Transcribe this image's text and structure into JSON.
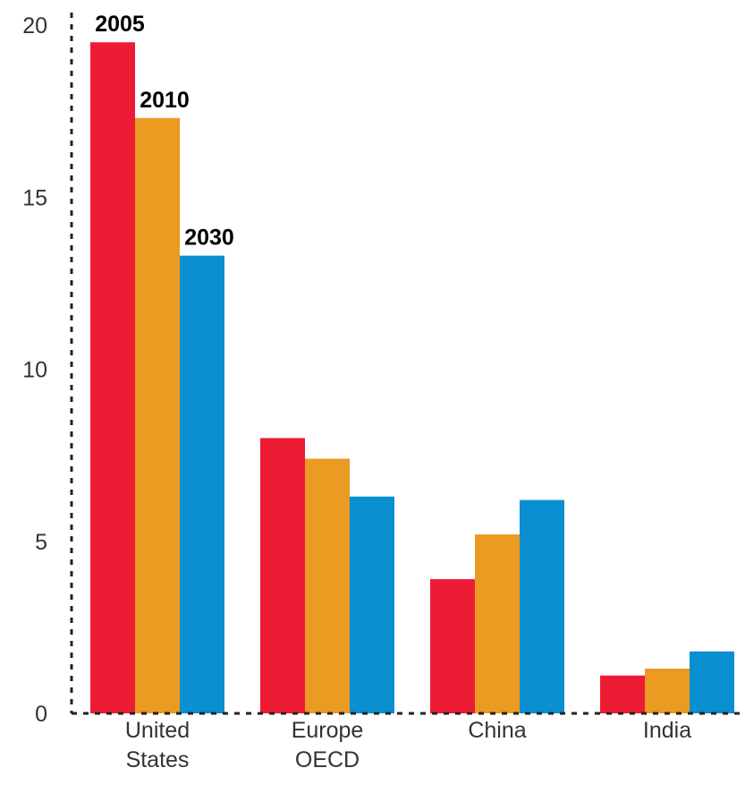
{
  "chart_data": {
    "type": "bar",
    "title": "",
    "xlabel": "",
    "ylabel": "",
    "categories": [
      "United\nStates",
      "Europe\nOECD",
      "China",
      "India"
    ],
    "series": [
      {
        "name": "2005",
        "color": "#ED1C35",
        "values": [
          19.5,
          8.0,
          3.9,
          1.1
        ]
      },
      {
        "name": "2010",
        "color": "#EB9A22",
        "values": [
          17.3,
          7.4,
          5.2,
          1.3
        ]
      },
      {
        "name": "2030",
        "color": "#0A8FD0",
        "values": [
          13.3,
          6.3,
          6.2,
          1.8
        ]
      }
    ],
    "ylim": [
      0,
      20
    ],
    "yticks": [
      0,
      5,
      10,
      15,
      20
    ],
    "grid": false,
    "axis_style": "dotted",
    "legend": "series names printed above the first category's bars"
  }
}
